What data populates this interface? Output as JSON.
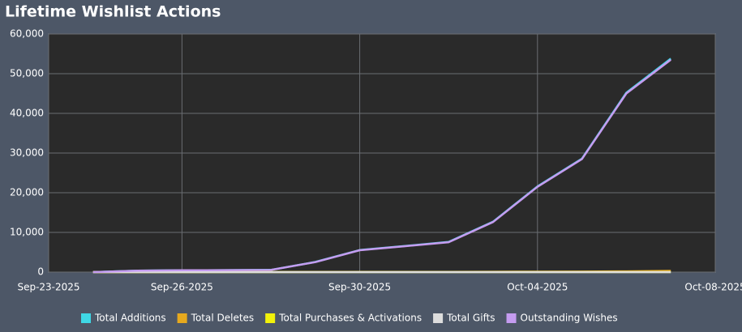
{
  "chart_data": {
    "type": "line",
    "title": "Lifetime Wishlist Actions",
    "x": [
      "2025-09-24",
      "2025-09-25",
      "2025-09-26",
      "2025-09-27",
      "2025-09-28",
      "2025-09-29",
      "2025-09-30",
      "2025-10-01",
      "2025-10-02",
      "2025-10-03",
      "2025-10-04",
      "2025-10-05",
      "2025-10-06",
      "2025-10-07"
    ],
    "xlim": [
      "2025-09-23",
      "2025-10-08"
    ],
    "xticks": [
      {
        "value": "2025-09-23",
        "label": "Sep-23-2025"
      },
      {
        "value": "2025-09-26",
        "label": "Sep-26-2025"
      },
      {
        "value": "2025-09-30",
        "label": "Sep-30-2025"
      },
      {
        "value": "2025-10-04",
        "label": "Oct-04-2025"
      },
      {
        "value": "2025-10-08",
        "label": "Oct-08-2025"
      }
    ],
    "ylim": [
      0,
      60000
    ],
    "yticks": [
      0,
      {
        "value": 10000,
        "label": "10,000"
      },
      {
        "value": 20000,
        "label": "20,000"
      },
      {
        "value": 30000,
        "label": "30,000"
      },
      {
        "value": 40000,
        "label": "40,000"
      },
      {
        "value": 50000,
        "label": "50,000"
      },
      {
        "value": 60000,
        "label": "60,000"
      }
    ],
    "grid": true,
    "legend": "bottom",
    "series": [
      {
        "name": "Total Additions",
        "color": "#3fd8e6",
        "values": [
          0,
          350,
          450,
          500,
          550,
          2550,
          5550,
          6550,
          7600,
          12700,
          21600,
          28600,
          45200,
          53800
        ]
      },
      {
        "name": "Total Deletes",
        "color": "#e6a91e",
        "values": [
          0,
          5,
          10,
          15,
          20,
          30,
          40,
          50,
          60,
          80,
          100,
          120,
          180,
          300
        ]
      },
      {
        "name": "Total Purchases & Activations",
        "color": "#f2f20a",
        "values": [
          0,
          0,
          0,
          0,
          0,
          0,
          0,
          0,
          0,
          0,
          0,
          0,
          0,
          0
        ]
      },
      {
        "name": "Total Gifts",
        "color": "#dddddd",
        "values": [
          0,
          0,
          0,
          0,
          0,
          0,
          0,
          0,
          0,
          0,
          0,
          0,
          0,
          0
        ]
      },
      {
        "name": "Outstanding Wishes",
        "color": "#c59cf0",
        "values": [
          0,
          345,
          440,
          485,
          530,
          2520,
          5510,
          6500,
          7540,
          12620,
          21500,
          28480,
          45020,
          53500
        ]
      }
    ]
  }
}
